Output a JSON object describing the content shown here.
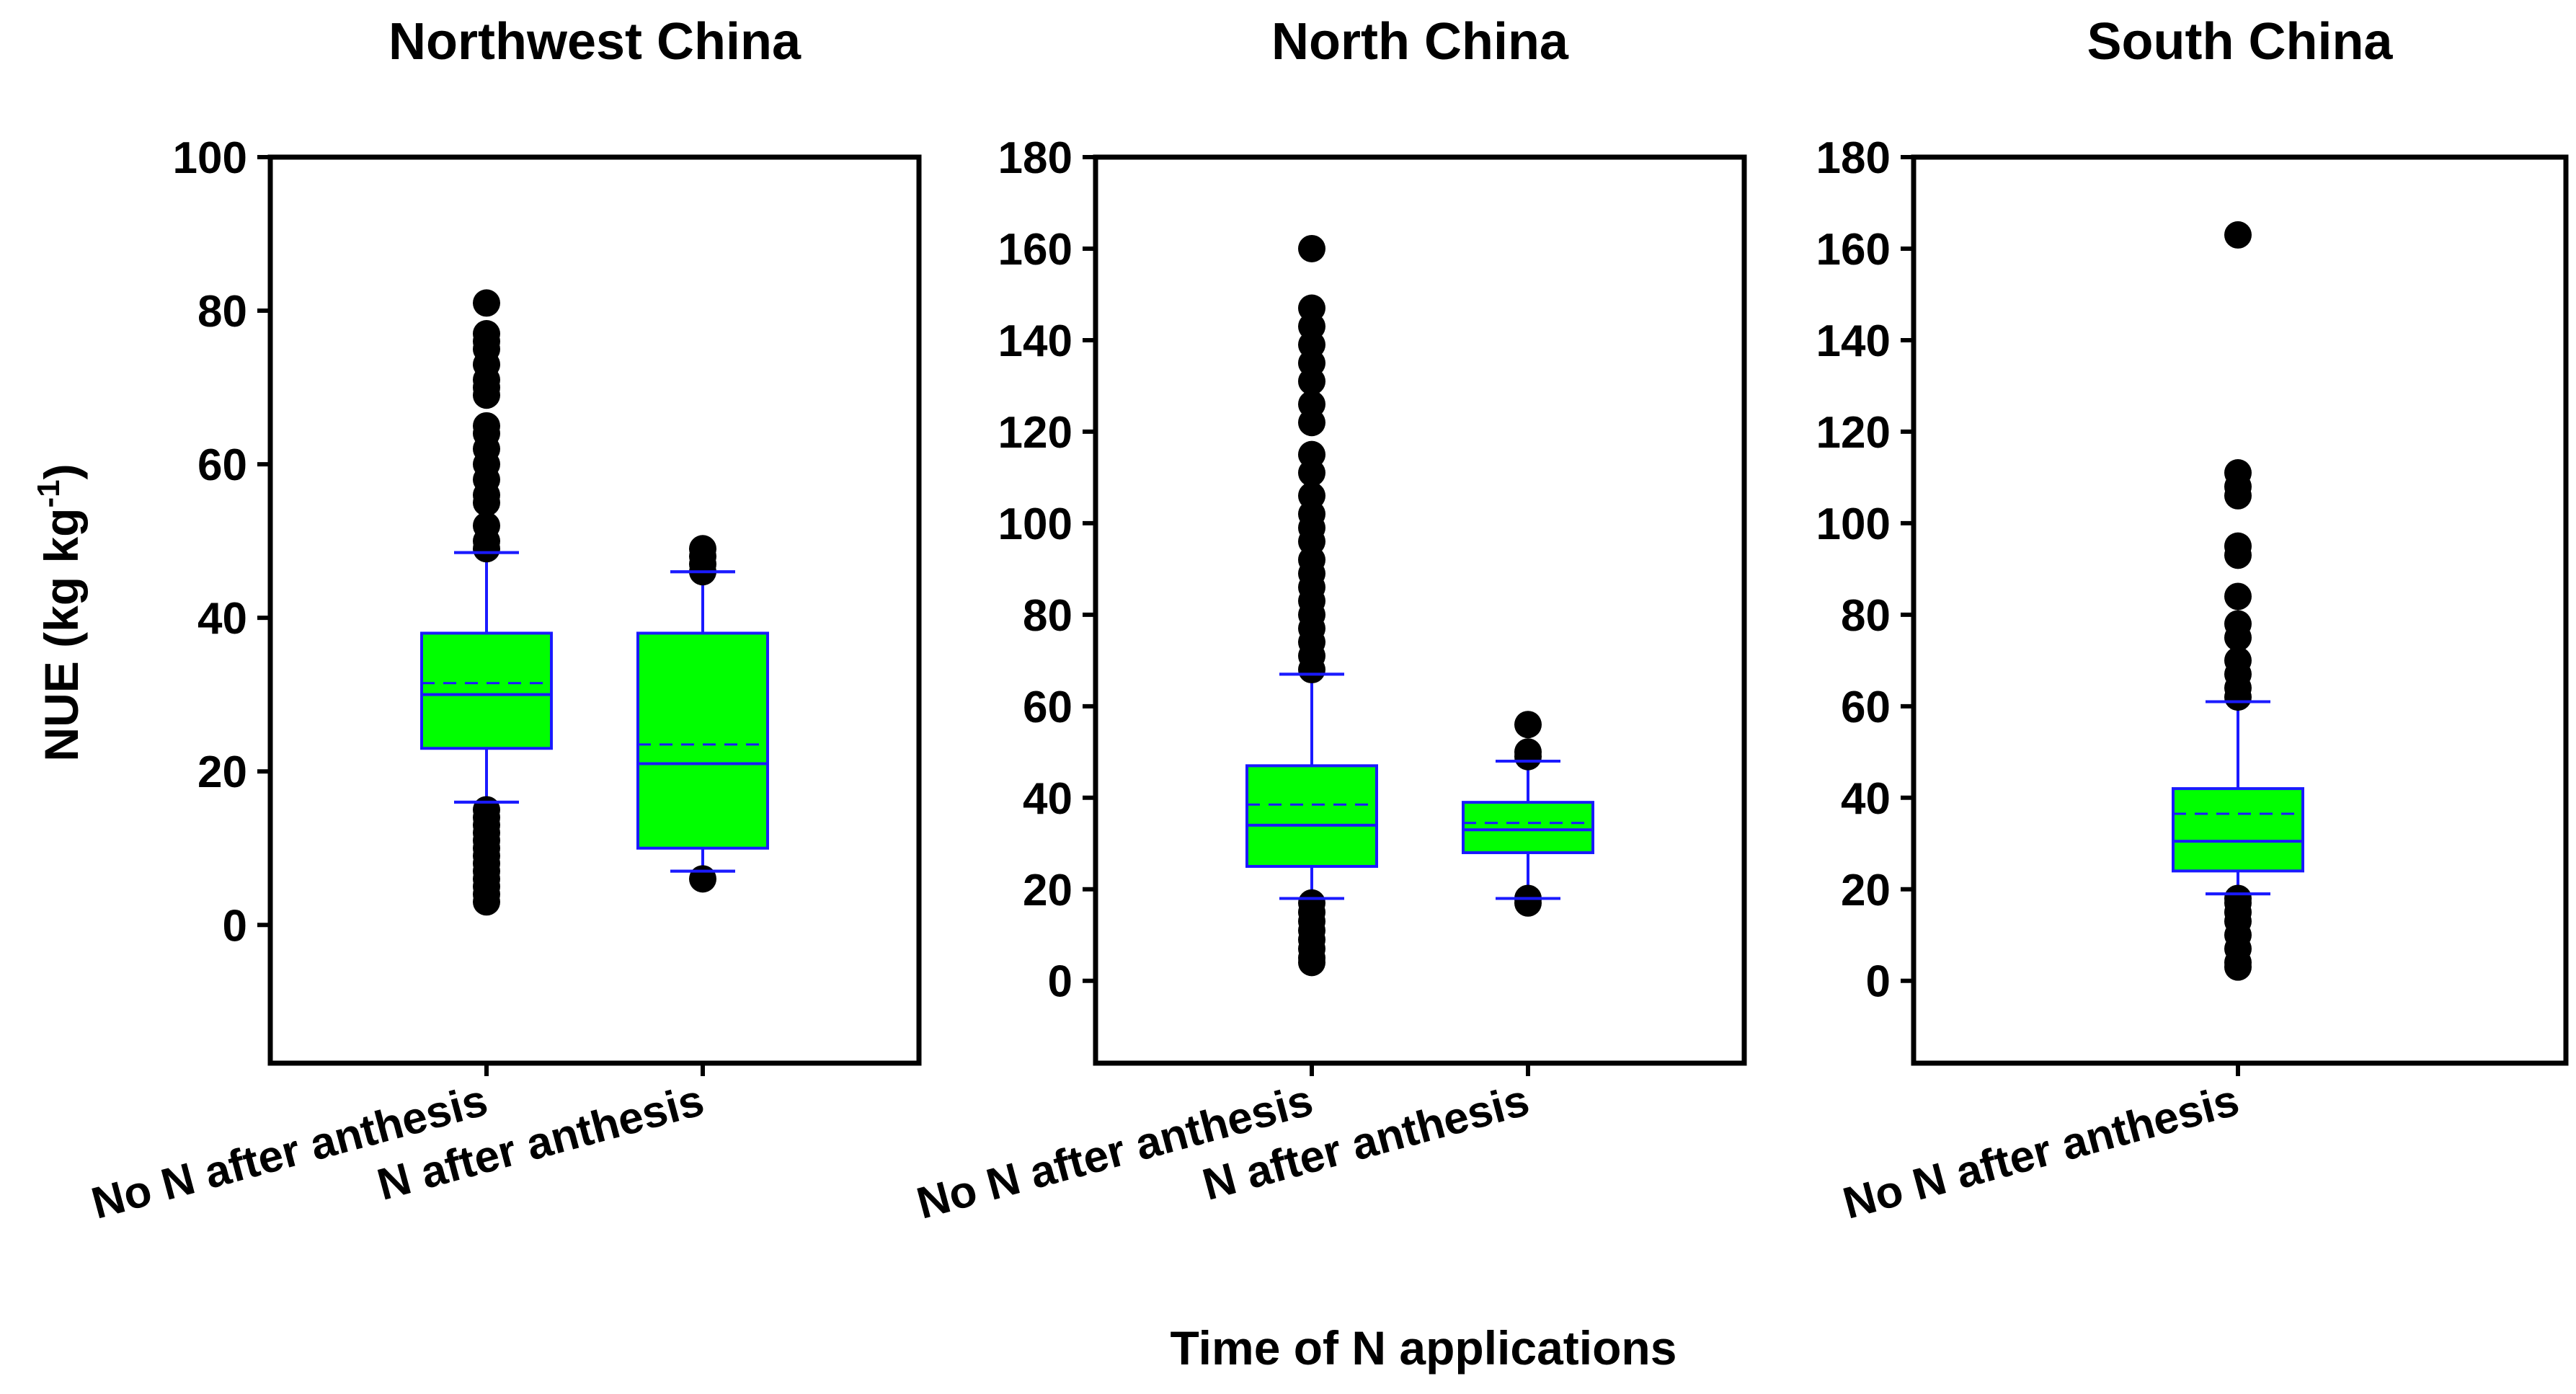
{
  "colors": {
    "box_fill": "#00ff00",
    "box_stroke": "#1a1aff",
    "outlier": "#000000"
  },
  "figure": {
    "ylabel": "NUE (kg kg",
    "ylabel_sup": "-1",
    "ylabel_close": ")",
    "xlabel": "Time of N applications"
  },
  "chart_data": [
    {
      "type": "box",
      "title": "Northwest China",
      "ylim": [
        -18,
        100
      ],
      "yticks": [
        0,
        20,
        40,
        60,
        80,
        100
      ],
      "categories": [
        "No N after anthesis",
        "N after anthesis"
      ],
      "boxes": [
        {
          "category": "No N after anthesis",
          "q1": 23,
          "median": 30,
          "mean": 31.5,
          "q3": 38,
          "whisker_low": 16,
          "whisker_high": 48.5,
          "outliers": [
            81,
            77,
            76,
            75,
            73,
            71,
            70,
            69,
            65,
            64,
            62,
            60,
            58,
            56,
            55,
            52,
            50,
            49,
            15,
            14,
            13,
            12,
            11,
            10,
            9,
            8,
            7,
            6,
            5,
            4,
            3
          ]
        },
        {
          "category": "N after anthesis",
          "q1": 10,
          "median": 21,
          "mean": 23.5,
          "q3": 38,
          "whisker_low": 7,
          "whisker_high": 46,
          "outliers": [
            49,
            48,
            47,
            46,
            6
          ]
        }
      ]
    },
    {
      "type": "box",
      "title": "North China",
      "ylim": [
        -18,
        180
      ],
      "yticks": [
        0,
        20,
        40,
        60,
        80,
        100,
        120,
        140,
        160,
        180
      ],
      "categories": [
        "No N after anthesis",
        "N after anthesis"
      ],
      "boxes": [
        {
          "category": "No N after anthesis",
          "q1": 25,
          "median": 34,
          "mean": 38.5,
          "q3": 47,
          "whisker_low": 18,
          "whisker_high": 67,
          "outliers": [
            160,
            147,
            143,
            139,
            135,
            131,
            126,
            122,
            115,
            111,
            106,
            102,
            99,
            96,
            92,
            89,
            86,
            83,
            80,
            77,
            74,
            71,
            68,
            17,
            15,
            13,
            11,
            9,
            7,
            5,
            4
          ]
        },
        {
          "category": "N after anthesis",
          "q1": 28,
          "median": 33,
          "mean": 34.5,
          "q3": 39,
          "whisker_low": 18,
          "whisker_high": 48,
          "outliers": [
            56,
            50,
            49,
            18,
            17
          ]
        }
      ]
    },
    {
      "type": "box",
      "title": "South China",
      "ylim": [
        -18,
        180
      ],
      "yticks": [
        0,
        20,
        40,
        60,
        80,
        100,
        120,
        140,
        160,
        180
      ],
      "categories": [
        "No N after anthesis"
      ],
      "boxes": [
        {
          "category": "No N after anthesis",
          "q1": 24,
          "median": 30.5,
          "mean": 36.5,
          "q3": 42,
          "whisker_low": 19,
          "whisker_high": 61,
          "outliers": [
            163,
            111,
            108,
            106,
            95,
            93,
            84,
            78,
            75,
            70,
            67,
            64,
            62,
            18,
            17,
            15,
            13,
            10,
            7,
            4,
            3
          ]
        }
      ]
    }
  ]
}
